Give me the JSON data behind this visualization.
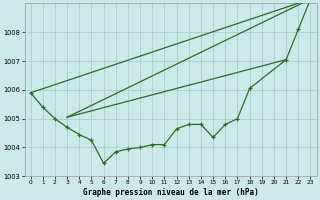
{
  "xlabel": "Graphe pression niveau de la mer (hPa)",
  "background_color": "#cce8e8",
  "grid_color": "#aad0d0",
  "line_color": "#2d6b2d",
  "ylim": [
    1003.0,
    1009.0
  ],
  "xlim": [
    -0.5,
    23.5
  ],
  "yticks": [
    1003,
    1004,
    1005,
    1006,
    1007,
    1008
  ],
  "xticks": [
    0,
    1,
    2,
    3,
    4,
    5,
    6,
    7,
    8,
    9,
    10,
    11,
    12,
    13,
    14,
    15,
    16,
    17,
    18,
    19,
    20,
    21,
    22,
    23
  ],
  "fan_lines": [
    {
      "x": [
        0,
        23
      ],
      "y": [
        1005.9,
        1009.15
      ]
    },
    {
      "x": [
        3,
        23
      ],
      "y": [
        1005.05,
        1009.15
      ]
    },
    {
      "x": [
        3,
        21
      ],
      "y": [
        1005.05,
        1007.05
      ]
    }
  ],
  "wiggly_x": [
    0,
    1,
    2,
    3,
    4,
    5,
    6,
    7,
    8,
    9,
    10,
    11,
    12,
    13,
    14,
    15,
    16,
    17,
    18,
    21,
    22,
    23
  ],
  "wiggly_y": [
    1005.9,
    1005.4,
    1005.0,
    1004.7,
    1004.45,
    1004.25,
    1003.45,
    1003.85,
    1003.95,
    1004.0,
    1004.1,
    1004.1,
    1004.65,
    1004.8,
    1004.8,
    1004.35,
    1004.8,
    1005.0,
    1006.05,
    1007.05,
    1008.1,
    1009.15
  ]
}
